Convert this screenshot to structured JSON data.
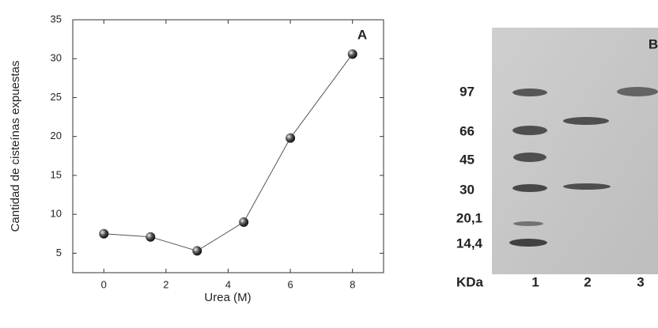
{
  "chart_data": {
    "type": "line",
    "annotation": "A",
    "xlabel": "Urea (M)",
    "ylabel": "Cantidad de cisteínas  expuestas",
    "x": [
      0,
      1.5,
      3,
      4.5,
      6,
      8
    ],
    "values": [
      7.5,
      7.1,
      5.3,
      9.0,
      19.8,
      30.6
    ],
    "color": "#555555",
    "xlim": [
      -1,
      9
    ],
    "xticks": [
      0,
      2,
      4,
      6,
      8
    ],
    "ylim": [
      2.5,
      35
    ],
    "yticks": [
      5,
      10,
      15,
      20,
      25,
      30,
      35
    ]
  },
  "gel": {
    "panel": "B",
    "unit": "KDa",
    "markers": [
      "97",
      "66",
      "45",
      "30",
      "20,1",
      "14,4"
    ],
    "lanes": [
      "1",
      "2",
      "3"
    ]
  }
}
